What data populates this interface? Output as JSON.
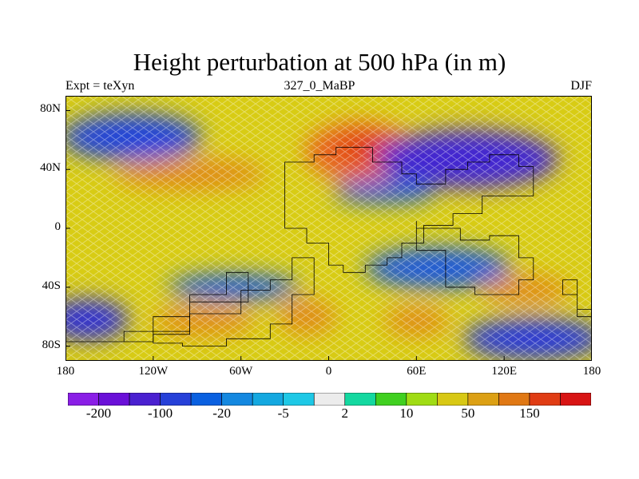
{
  "title": "Height perturbation at 500 hPa (in m)",
  "subtitle_left": "Expt = teXyn",
  "subtitle_center": "327_0_MaBP",
  "subtitle_right": "DJF",
  "lat_labels": [
    "80N",
    "40N",
    "0",
    "40S",
    "80S"
  ],
  "lon_labels": [
    "180",
    "120W",
    "60W",
    "0",
    "60E",
    "120E",
    "180"
  ],
  "colorbar": {
    "colors": [
      "#8a1ee6",
      "#6a10d8",
      "#4a20d0",
      "#2640d8",
      "#0a60e0",
      "#1488e0",
      "#14a8e0",
      "#1ec8e6",
      "#ececec",
      "#14d8a0",
      "#40d020",
      "#a0dc14",
      "#d8c814",
      "#dca014",
      "#e07814",
      "#e03c14",
      "#d81414"
    ],
    "labels": [
      "-200",
      "-100",
      "-20",
      "-5",
      "2",
      "10",
      "50",
      "150"
    ]
  },
  "map_data": {
    "x_range": [
      -180,
      180
    ],
    "y_range": [
      -90,
      90
    ],
    "field": "500 hPa height perturbation (m)",
    "background_color": "#d8cc14",
    "anomalies": [
      {
        "lon": -135,
        "lat": 62,
        "rx": 48,
        "ry": 16,
        "color": "#2244d8",
        "kind": "negative"
      },
      {
        "lon": -95,
        "lat": 37,
        "rx": 52,
        "ry": 11,
        "color": "#e08c14",
        "kind": "positive"
      },
      {
        "lon": 22,
        "lat": 52,
        "rx": 38,
        "ry": 20,
        "color": "#e8641a",
        "kind": "positive"
      },
      {
        "lon": 25,
        "lat": 55,
        "rx": 18,
        "ry": 10,
        "color": "#e03c14",
        "kind": "positive"
      },
      {
        "lon": 95,
        "lat": 47,
        "rx": 62,
        "ry": 20,
        "color": "#4228d0",
        "kind": "negative"
      },
      {
        "lon": 38,
        "lat": 25,
        "rx": 35,
        "ry": 8,
        "color": "#1f5ad8",
        "kind": "negative"
      },
      {
        "lon": 75,
        "lat": -27,
        "rx": 50,
        "ry": 14,
        "color": "#1f5ad8",
        "kind": "negative"
      },
      {
        "lon": -65,
        "lat": -40,
        "rx": 45,
        "ry": 9,
        "color": "#1f5ad8",
        "kind": "negative"
      },
      {
        "lon": -165,
        "lat": -62,
        "rx": 28,
        "ry": 14,
        "color": "#3030d0",
        "kind": "negative"
      },
      {
        "lon": 140,
        "lat": -75,
        "rx": 48,
        "ry": 14,
        "color": "#2a3ad6",
        "kind": "negative"
      },
      {
        "lon": 135,
        "lat": -42,
        "rx": 30,
        "ry": 10,
        "color": "#e08c14",
        "kind": "positive"
      },
      {
        "lon": -15,
        "lat": -60,
        "rx": 20,
        "ry": 12,
        "color": "#e08c14",
        "kind": "positive"
      },
      {
        "lon": 60,
        "lat": -63,
        "rx": 22,
        "ry": 10,
        "color": "#e08c14",
        "kind": "positive"
      },
      {
        "lon": -85,
        "lat": -63,
        "rx": 35,
        "ry": 10,
        "color": "#e08c14",
        "kind": "positive"
      }
    ],
    "coastlines": [
      [
        [
          -30,
          40
        ],
        [
          -10,
          45
        ],
        [
          5,
          50
        ],
        [
          30,
          55
        ],
        [
          50,
          45
        ],
        [
          60,
          37
        ],
        [
          80,
          30
        ],
        [
          95,
          40
        ],
        [
          110,
          45
        ],
        [
          130,
          50
        ],
        [
          140,
          42
        ],
        [
          105,
          22
        ],
        [
          85,
          10
        ],
        [
          65,
          2
        ],
        [
          50,
          -10
        ],
        [
          40,
          -20
        ],
        [
          25,
          -25
        ],
        [
          10,
          -30
        ],
        [
          0,
          -25
        ],
        [
          -15,
          -10
        ],
        [
          -30,
          0
        ],
        [
          -30,
          20
        ],
        [
          -30,
          40
        ]
      ],
      [
        [
          60,
          5
        ],
        [
          90,
          0
        ],
        [
          110,
          -8
        ],
        [
          130,
          -5
        ],
        [
          140,
          -20
        ],
        [
          130,
          -35
        ],
        [
          100,
          -45
        ],
        [
          80,
          -40
        ],
        [
          60,
          -15
        ],
        [
          60,
          5
        ]
      ],
      [
        [
          -120,
          -78
        ],
        [
          -95,
          -72
        ],
        [
          -60,
          -58
        ],
        [
          -40,
          -42
        ],
        [
          -25,
          -35
        ],
        [
          -10,
          -20
        ],
        [
          -25,
          -45
        ],
        [
          -40,
          -65
        ],
        [
          -70,
          -75
        ],
        [
          -100,
          -80
        ],
        [
          -120,
          -78
        ]
      ],
      [
        [
          -180,
          -77
        ],
        [
          -120,
          -77
        ],
        [
          -95,
          -60
        ],
        [
          -70,
          -45
        ],
        [
          -55,
          -30
        ],
        [
          -95,
          -50
        ],
        [
          -140,
          -70
        ],
        [
          -180,
          -77
        ]
      ],
      [
        [
          160,
          -35
        ],
        [
          170,
          -45
        ],
        [
          180,
          -60
        ],
        [
          180,
          -80
        ],
        [
          170,
          -55
        ],
        [
          160,
          -35
        ]
      ]
    ]
  }
}
